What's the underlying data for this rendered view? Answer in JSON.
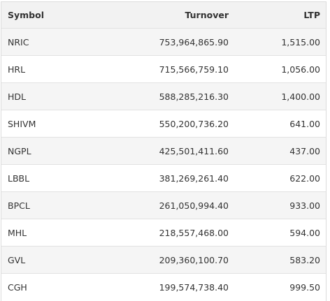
{
  "table": {
    "columns": {
      "symbol": "Symbol",
      "turnover": "Turnover",
      "ltp": "LTP"
    },
    "rows": [
      {
        "symbol": "NRIC",
        "turnover": "753,964,865.90",
        "ltp": "1,515.00"
      },
      {
        "symbol": "HRL",
        "turnover": "715,566,759.10",
        "ltp": "1,056.00"
      },
      {
        "symbol": "HDL",
        "turnover": "588,285,216.30",
        "ltp": "1,400.00"
      },
      {
        "symbol": "SHIVM",
        "turnover": "550,200,736.20",
        "ltp": "641.00"
      },
      {
        "symbol": "NGPL",
        "turnover": "425,501,411.60",
        "ltp": "437.00"
      },
      {
        "symbol": "LBBL",
        "turnover": "381,269,261.40",
        "ltp": "622.00"
      },
      {
        "symbol": "BPCL",
        "turnover": "261,050,994.40",
        "ltp": "933.00"
      },
      {
        "symbol": "MHL",
        "turnover": "218,557,468.00",
        "ltp": "594.00"
      },
      {
        "symbol": "GVL",
        "turnover": "209,360,100.70",
        "ltp": "583.20"
      },
      {
        "symbol": "CGH",
        "turnover": "199,574,738.40",
        "ltp": "999.50"
      }
    ]
  }
}
